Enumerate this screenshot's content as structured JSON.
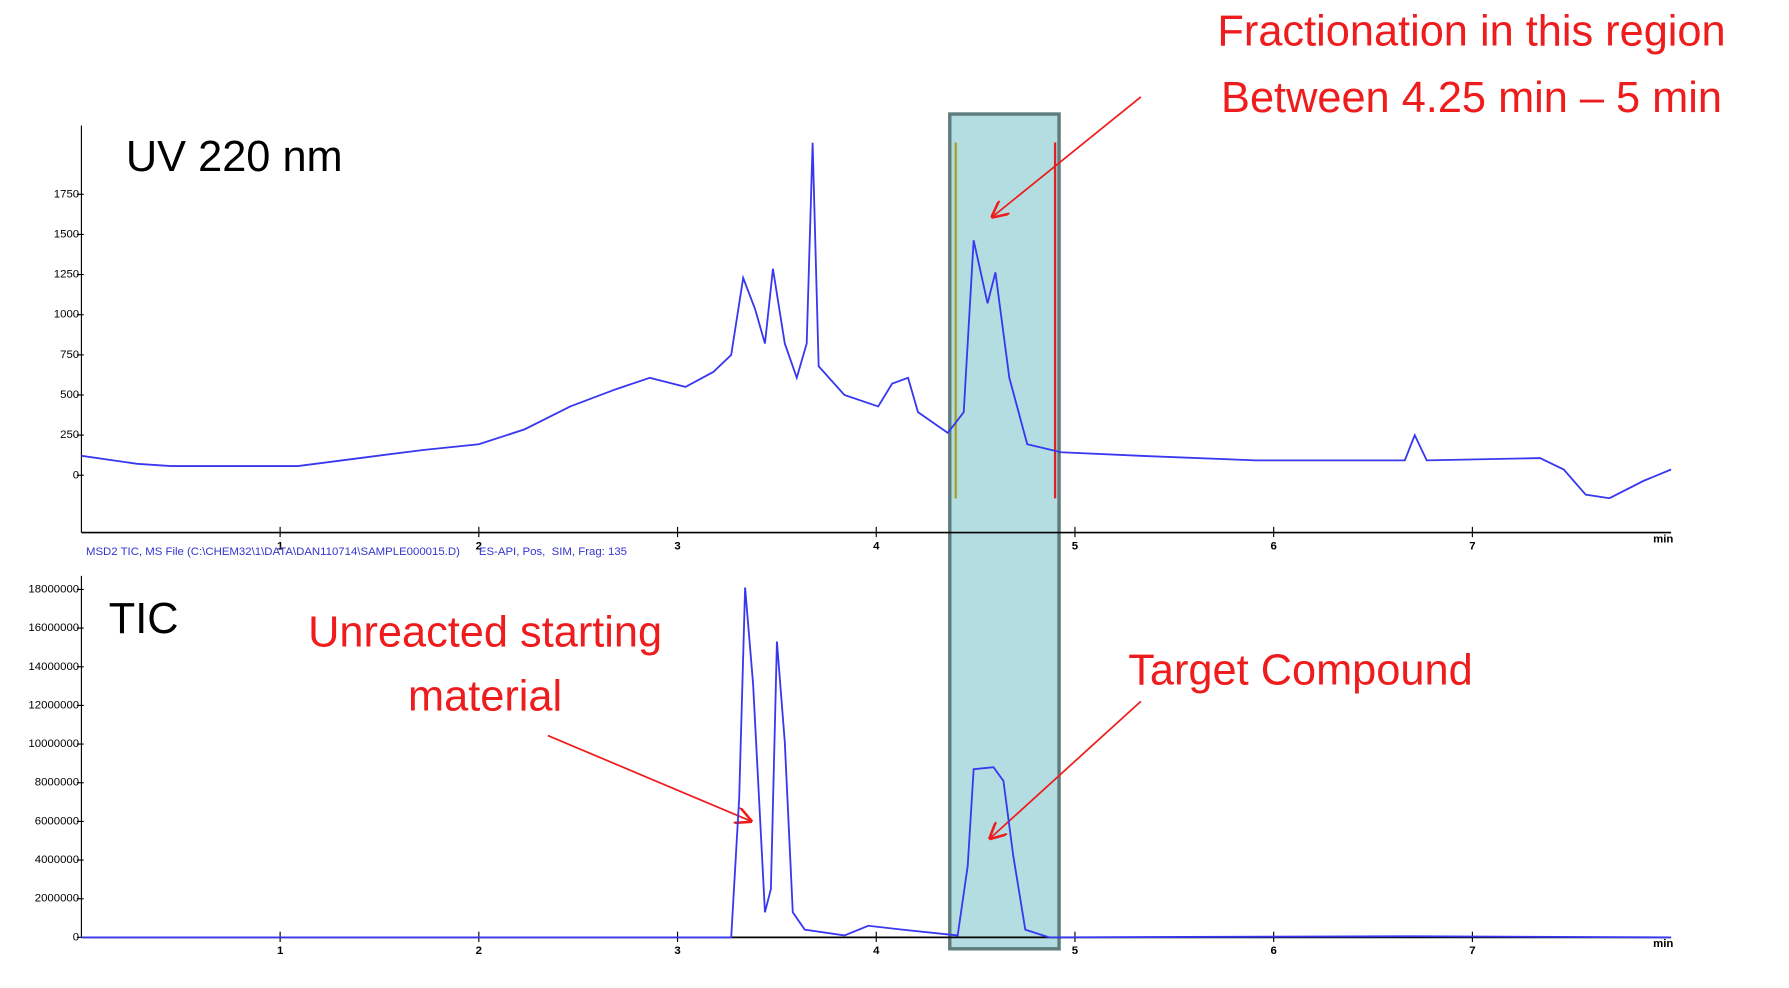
{
  "chart_data": [
    {
      "type": "line",
      "title": "UV 220 nm",
      "annotations": [
        "Fractionation in this region",
        "Between 4.25 min – 5 min"
      ],
      "xlabel": "min",
      "xlim": [
        0,
        8
      ],
      "xticks": [
        1,
        2,
        3,
        4,
        5,
        6,
        7
      ],
      "ylim": [
        -357,
        2179
      ],
      "yticks": [
        0,
        250,
        500,
        750,
        1000,
        1250,
        1500,
        1750
      ],
      "highlight": [
        4.37,
        4.92
      ],
      "markers": [
        {
          "x": 4.4,
          "color": "#a8a020"
        },
        {
          "x": 4.9,
          "color": "#e02020"
        }
      ],
      "series": [
        {
          "color": "#3838f0",
          "x": [
            0,
            0.28,
            0.45,
            1.09,
            1.49,
            1.72,
            2.0,
            2.23,
            2.46,
            2.69,
            2.86,
            3.04,
            3.18,
            3.27,
            3.33,
            3.39,
            3.44,
            3.48,
            3.54,
            3.6,
            3.65,
            3.68,
            3.71,
            3.84,
            4.01,
            4.08,
            4.16,
            4.21,
            4.36,
            4.44,
            4.49,
            4.56,
            4.6,
            4.67,
            4.76,
            4.93,
            5.33,
            5.91,
            6.66,
            6.71,
            6.77,
            7.34,
            7.46,
            7.57,
            7.69,
            7.86,
            8.0
          ],
          "values": [
            121,
            71,
            57,
            57,
            121,
            157,
            193,
            286,
            429,
            536,
            607,
            550,
            643,
            750,
            1229,
            1036,
            821,
            1286,
            821,
            607,
            821,
            2071,
            679,
            500,
            429,
            571,
            607,
            393,
            264,
            393,
            1464,
            1071,
            1264,
            607,
            193,
            143,
            121,
            93,
            93,
            250,
            93,
            107,
            36,
            -121,
            -143,
            -36,
            36
          ]
        }
      ]
    },
    {
      "type": "line",
      "title": "TIC",
      "subtitle": "MSD2 TIC, MS File (C:\\CHEM32\\1\\DATA\\DAN110714\\SAMPLE000015.D)      ES-API, Pos,  SIM, Frag: 135",
      "annotations": [
        "Unreacted starting",
        "material",
        "Target Compound"
      ],
      "xlabel": "min",
      "xlim": [
        0,
        8
      ],
      "xticks": [
        1,
        2,
        3,
        4,
        5,
        6,
        7
      ],
      "ylim": [
        0,
        18700000
      ],
      "yticks": [
        0,
        2000000,
        4000000,
        6000000,
        8000000,
        10000000,
        12000000,
        14000000,
        16000000,
        18000000
      ],
      "series": [
        {
          "color": "#3838f0",
          "x": [
            0,
            3.27,
            3.31,
            3.34,
            3.38,
            3.44,
            3.47,
            3.5,
            3.54,
            3.58,
            3.64,
            3.84,
            3.96,
            4.13,
            4.41,
            4.46,
            4.49,
            4.59,
            4.64,
            4.69,
            4.75,
            4.87,
            6.71,
            8.0
          ],
          "values": [
            0,
            0,
            7200000,
            18100000,
            13100000,
            1300000,
            2500000,
            15300000,
            10100000,
            1300000,
            400000,
            100000,
            600000,
            400000,
            100000,
            3700000,
            8700000,
            8800000,
            8100000,
            4200000,
            400000,
            0,
            60000,
            0
          ]
        }
      ]
    }
  ]
}
